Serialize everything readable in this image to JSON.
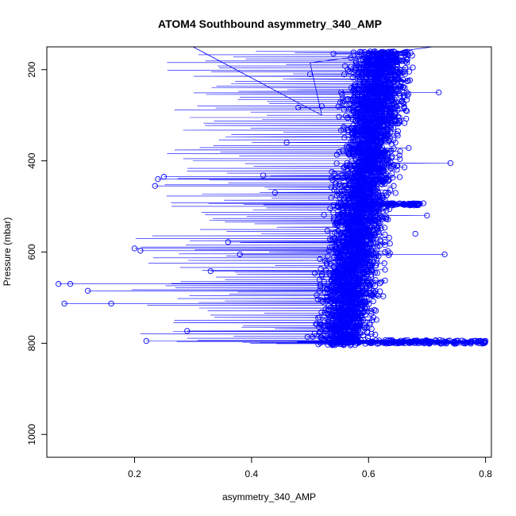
{
  "chart_data": {
    "type": "scatter",
    "title": "ATOM4 Southbound asymmetry_340_AMP",
    "xlabel": "asymmetry_340_AMP",
    "ylabel": "Pressure (mbar)",
    "xlim": [
      0.05,
      0.81
    ],
    "ylim": [
      1050,
      150
    ],
    "y_reversed": true,
    "xticks": [
      "0.2",
      "0.4",
      "0.6",
      "0.8"
    ],
    "yticks": [
      "200",
      "400",
      "600",
      "800",
      "1000"
    ],
    "marker": "open-circle",
    "line_connected": true,
    "color": "#0000ff",
    "grid": false,
    "legend": "none",
    "series": [
      {
        "points_sample": [
          [
            0.07,
            670
          ],
          [
            0.09,
            670
          ],
          [
            0.12,
            685
          ],
          [
            0.16,
            713
          ],
          [
            0.08,
            713
          ],
          [
            0.22,
            795
          ],
          [
            0.24,
            440
          ],
          [
            0.25,
            435
          ],
          [
            0.235,
            455
          ],
          [
            0.2,
            592
          ],
          [
            0.21,
            597
          ],
          [
            0.36,
            578
          ],
          [
            0.38,
            605
          ],
          [
            0.33,
            642
          ],
          [
            0.29,
            773
          ],
          [
            0.42,
            432
          ],
          [
            0.44,
            470
          ],
          [
            0.46,
            360
          ],
          [
            0.48,
            283
          ],
          [
            0.5,
            210
          ],
          [
            0.52,
            280
          ],
          [
            0.54,
            165
          ],
          [
            0.55,
            380
          ],
          [
            0.56,
            500
          ],
          [
            0.57,
            640
          ],
          [
            0.58,
            720
          ],
          [
            0.6,
            795
          ],
          [
            0.62,
            440
          ],
          [
            0.64,
            300
          ],
          [
            0.65,
            495
          ],
          [
            0.66,
            250
          ],
          [
            0.68,
            560
          ],
          [
            0.7,
            520
          ],
          [
            0.72,
            250
          ],
          [
            0.73,
            605
          ],
          [
            0.74,
            405
          ],
          [
            0.75,
            795
          ],
          [
            0.78,
            795
          ],
          [
            0.8,
            795
          ],
          [
            0.67,
            800
          ]
        ]
      }
    ]
  }
}
